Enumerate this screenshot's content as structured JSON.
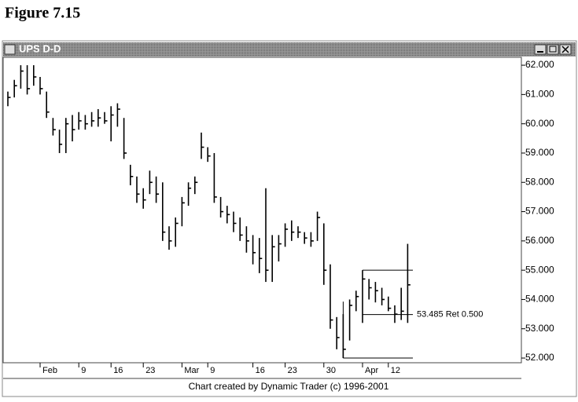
{
  "figure_caption": "Figure 7.15",
  "window_title": "UPS D-D",
  "chart_data": {
    "type": "hlc",
    "footer": "Chart created by Dynamic Trader (c) 1996-2001",
    "categories": [
      null,
      null,
      null,
      null,
      null,
      "Feb",
      null,
      null,
      null,
      null,
      null,
      "9",
      null,
      null,
      null,
      null,
      "16",
      null,
      null,
      null,
      null,
      "23",
      null,
      null,
      null,
      null,
      null,
      "Mar",
      null,
      null,
      null,
      "9",
      null,
      null,
      null,
      null,
      null,
      null,
      "16",
      null,
      null,
      null,
      null,
      "23",
      null,
      null,
      null,
      null,
      null,
      "30",
      null,
      null,
      null,
      null,
      null,
      "Apr",
      null,
      null,
      null,
      "12",
      null,
      null,
      null
    ],
    "high": [
      61.1,
      61.5,
      62.0,
      62.0,
      62.0,
      61.6,
      61.1,
      60.2,
      59.8,
      60.2,
      60.3,
      60.4,
      60.3,
      60.4,
      60.5,
      60.4,
      60.6,
      60.7,
      60.2,
      58.6,
      58.2,
      57.8,
      58.4,
      58.2,
      58.0,
      56.5,
      56.8,
      57.5,
      58.0,
      58.2,
      59.7,
      59.2,
      59.0,
      57.5,
      57.2,
      57.0,
      56.8,
      56.5,
      56.2,
      56.1,
      57.8,
      56.2,
      56.2,
      56.6,
      56.7,
      56.5,
      56.3,
      56.3,
      57.0,
      56.6,
      55.2,
      53.4,
      53.5,
      54.0,
      54.3,
      55.0,
      54.7,
      54.6,
      54.4,
      54.1,
      53.8,
      54.4,
      55.9
    ],
    "low": [
      60.6,
      60.9,
      61.2,
      61.0,
      61.3,
      61.0,
      60.2,
      59.6,
      59.0,
      59.0,
      59.4,
      59.8,
      59.8,
      59.9,
      59.9,
      60.0,
      59.4,
      59.9,
      58.8,
      57.9,
      57.3,
      57.1,
      57.6,
      57.3,
      56.0,
      55.7,
      55.8,
      56.5,
      57.2,
      57.6,
      58.8,
      58.7,
      57.3,
      56.8,
      56.6,
      56.3,
      56.0,
      55.6,
      55.2,
      54.9,
      54.6,
      54.6,
      55.3,
      55.8,
      56.0,
      56.1,
      55.9,
      55.8,
      56.0,
      54.5,
      53.0,
      52.3,
      52.0,
      52.6,
      53.6,
      53.2,
      54.0,
      53.9,
      53.8,
      53.6,
      53.2,
      53.3,
      53.2
    ],
    "close": [
      60.9,
      61.3,
      61.8,
      61.2,
      61.6,
      61.2,
      60.4,
      59.8,
      59.3,
      60.0,
      59.8,
      60.1,
      60.0,
      60.1,
      60.2,
      60.1,
      60.3,
      60.5,
      59.0,
      58.2,
      57.6,
      57.4,
      58.0,
      57.6,
      56.3,
      56.0,
      56.6,
      57.3,
      57.8,
      58.0,
      59.2,
      58.9,
      57.5,
      57.0,
      56.9,
      56.6,
      56.2,
      56.0,
      55.6,
      55.4,
      55.0,
      55.8,
      55.9,
      56.4,
      56.3,
      56.3,
      56.1,
      56.0,
      56.8,
      55.0,
      53.3,
      52.7,
      52.3,
      53.8,
      54.1,
      54.7,
      54.4,
      54.3,
      54.0,
      53.7,
      53.5,
      53.6,
      54.5
    ],
    "color": "#000000",
    "ylim": [
      51.84,
      62.27
    ],
    "yticks": [
      {
        "value": 52,
        "label": "52.000"
      },
      {
        "value": 53,
        "label": "53.000"
      },
      {
        "value": 54,
        "label": "54.000"
      },
      {
        "value": 55,
        "label": "55.000"
      },
      {
        "value": 56,
        "label": "56.000"
      },
      {
        "value": 57,
        "label": "57.000"
      },
      {
        "value": 58,
        "label": "58.000"
      },
      {
        "value": 59,
        "label": "59.000"
      },
      {
        "value": 60,
        "label": "60.000"
      },
      {
        "value": 61,
        "label": "61.000"
      },
      {
        "value": 62,
        "label": "62.000"
      }
    ],
    "swing_high": 55.0,
    "swing_low": 52.0,
    "retracement": {
      "value": 53.485,
      "label": "53.485 Ret 0.500"
    }
  }
}
